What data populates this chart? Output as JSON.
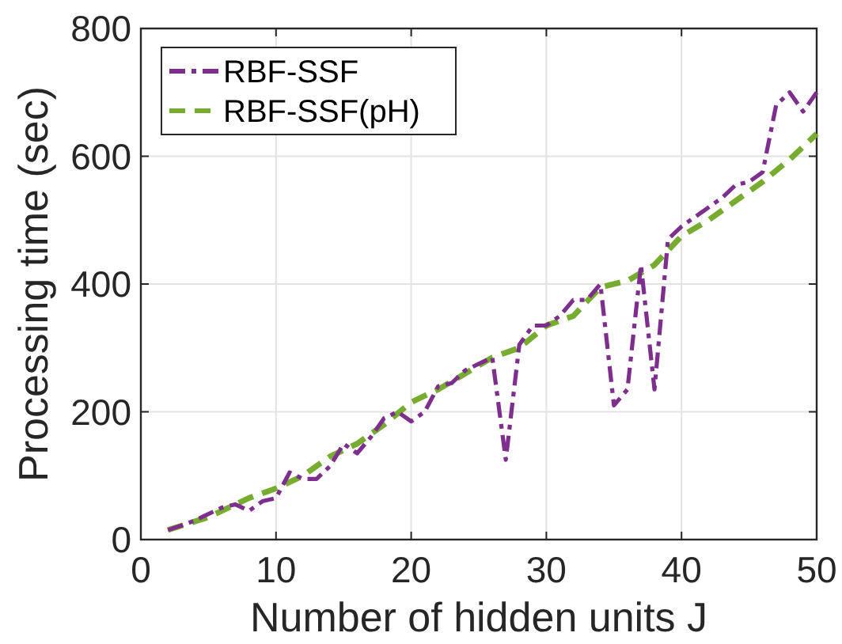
{
  "chart_data": {
    "type": "line",
    "xlabel": "Number of hidden units J",
    "ylabel": "Processing time (sec)",
    "xlim": [
      0,
      50
    ],
    "ylim": [
      0,
      800
    ],
    "xticks": [
      0,
      10,
      20,
      30,
      40,
      50
    ],
    "yticks": [
      0,
      200,
      400,
      600,
      800
    ],
    "grid": true,
    "legend": "top left",
    "series": [
      {
        "name": "RBF-SSF",
        "color": "#7e2f8e",
        "line_style": "dashdot",
        "x": [
          2,
          3,
          4,
          5,
          6,
          7,
          8,
          9,
          10,
          11,
          12,
          13,
          14,
          15,
          16,
          17,
          18,
          19,
          20,
          21,
          22,
          23,
          24,
          25,
          26,
          27,
          28,
          29,
          30,
          31,
          32,
          33,
          34,
          35,
          36,
          37,
          38,
          39,
          40,
          41,
          42,
          43,
          44,
          45,
          46,
          47,
          48,
          49,
          50
        ],
        "values": [
          15,
          22,
          30,
          40,
          50,
          55,
          45,
          60,
          65,
          105,
          95,
          95,
          115,
          150,
          135,
          160,
          190,
          200,
          185,
          200,
          240,
          245,
          265,
          275,
          285,
          125,
          305,
          335,
          335,
          350,
          375,
          375,
          400,
          210,
          235,
          430,
          235,
          470,
          490,
          505,
          520,
          535,
          555,
          560,
          575,
          680,
          700,
          670,
          700
        ]
      },
      {
        "name": "RBF-SSF(pH)",
        "color": "#77ac30",
        "line_style": "dashed",
        "x": [
          2,
          5,
          8,
          10,
          12,
          14,
          16,
          18,
          20,
          22,
          24,
          26,
          28,
          30,
          32,
          34,
          36,
          38,
          40,
          42,
          44,
          46,
          48,
          50
        ],
        "values": [
          15,
          35,
          65,
          80,
          100,
          130,
          150,
          180,
          215,
          235,
          260,
          285,
          300,
          335,
          350,
          395,
          405,
          430,
          475,
          500,
          530,
          560,
          595,
          635
        ]
      }
    ]
  }
}
